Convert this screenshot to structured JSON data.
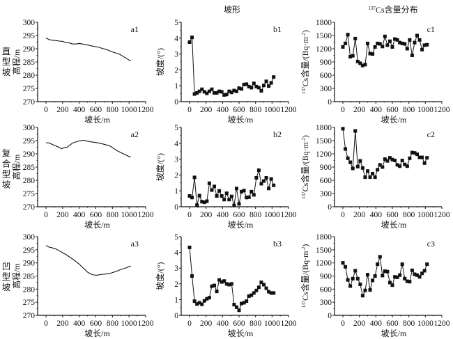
{
  "figure": {
    "column_titles": [
      "",
      "坡形",
      "137Cs含量分布"
    ],
    "row_labels": [
      [
        "直",
        "型",
        "坡"
      ],
      [
        "复",
        "合",
        "型",
        "坡"
      ],
      [
        "凹",
        "型",
        "坡"
      ]
    ]
  },
  "chart_data": [
    {
      "id": "a1",
      "type": "line",
      "row": 0,
      "col": 0,
      "markers": false,
      "title": "",
      "xlabel": "坡长/m",
      "ylabel": "高程/m",
      "xlim": [
        0,
        1200
      ],
      "ylim": [
        270,
        300
      ],
      "xticks": [
        0,
        200,
        400,
        600,
        800,
        1000,
        1200
      ],
      "yticks": [
        270,
        275,
        280,
        285,
        290,
        295,
        300
      ],
      "x": [
        0,
        40,
        80,
        120,
        160,
        200,
        240,
        280,
        320,
        360,
        400,
        440,
        480,
        520,
        560,
        600,
        640,
        680,
        720,
        760,
        800,
        840,
        880,
        920,
        960,
        1000,
        1020
      ],
      "y": [
        294.1,
        293.4,
        293.2,
        293.1,
        292.9,
        292.8,
        292.3,
        292.2,
        291.8,
        291.8,
        292.0,
        291.8,
        291.5,
        291.3,
        291.0,
        290.8,
        290.5,
        290.1,
        289.8,
        289.3,
        288.8,
        288.4,
        288.0,
        287.3,
        286.5,
        285.7,
        285.4
      ]
    },
    {
      "id": "b1",
      "type": "line",
      "row": 0,
      "col": 1,
      "markers": true,
      "title": "",
      "xlabel": "坡长/m",
      "ylabel": "坡度/(°)",
      "xlim": [
        0,
        1200
      ],
      "ylim": [
        0,
        5
      ],
      "xticks": [
        0,
        200,
        400,
        600,
        800,
        1000,
        1200
      ],
      "yticks": [
        0,
        1,
        2,
        3,
        4,
        5
      ],
      "x": [
        0,
        30,
        60,
        90,
        120,
        150,
        180,
        210,
        240,
        270,
        300,
        330,
        360,
        390,
        420,
        450,
        480,
        510,
        540,
        570,
        600,
        630,
        660,
        690,
        720,
        750,
        780,
        810,
        840,
        870,
        900,
        930,
        960,
        990,
        1020
      ],
      "y": [
        3.75,
        4.05,
        0.48,
        0.55,
        0.65,
        0.78,
        0.62,
        0.52,
        0.65,
        0.78,
        0.55,
        0.55,
        0.65,
        0.62,
        0.42,
        0.45,
        0.65,
        0.58,
        0.7,
        0.65,
        0.85,
        0.8,
        1.08,
        1.1,
        0.95,
        0.88,
        1.15,
        0.95,
        0.88,
        0.68,
        1.02,
        1.28,
        0.98,
        1.18,
        1.55
      ]
    },
    {
      "id": "c1",
      "type": "line",
      "row": 0,
      "col": 2,
      "markers": true,
      "title": "",
      "xlabel": "坡长/m",
      "ylabel": "137Cs含量/(Bq·m-2)",
      "xlim": [
        0,
        1200
      ],
      "ylim": [
        0,
        1800
      ],
      "xticks": [
        0,
        200,
        400,
        600,
        800,
        1000,
        1200
      ],
      "yticks": [
        0,
        300,
        600,
        900,
        1200,
        1500,
        1800
      ],
      "x": [
        0,
        30,
        60,
        90,
        120,
        150,
        180,
        210,
        240,
        270,
        300,
        330,
        360,
        390,
        420,
        450,
        480,
        510,
        540,
        570,
        600,
        630,
        660,
        690,
        720,
        750,
        780,
        810,
        840,
        870,
        900,
        930,
        960,
        990,
        1020
      ],
      "y": [
        1240,
        1320,
        1520,
        1020,
        1040,
        1430,
        910,
        870,
        820,
        840,
        1320,
        1090,
        1080,
        1240,
        1320,
        1310,
        1250,
        1480,
        1280,
        1370,
        1240,
        1420,
        1400,
        1340,
        1320,
        1310,
        1200,
        1400,
        1050,
        1340,
        1500,
        1400,
        1180,
        1280,
        1290
      ]
    },
    {
      "id": "a2",
      "type": "line",
      "row": 1,
      "col": 0,
      "markers": false,
      "title": "",
      "xlabel": "坡长/m",
      "ylabel": "高程/m",
      "xlim": [
        0,
        1200
      ],
      "ylim": [
        270,
        300
      ],
      "xticks": [
        0,
        200,
        400,
        600,
        800,
        1000,
        1200
      ],
      "yticks": [
        270,
        275,
        280,
        285,
        290,
        295,
        300
      ],
      "x": [
        0,
        40,
        80,
        120,
        160,
        190,
        220,
        250,
        280,
        320,
        360,
        400,
        450,
        500,
        550,
        600,
        650,
        700,
        760,
        800,
        850,
        900,
        950,
        1000,
        1020
      ],
      "y": [
        294.2,
        294.1,
        293.5,
        293.0,
        292.4,
        291.9,
        292.4,
        292.4,
        293.1,
        294.1,
        294.5,
        294.9,
        295.1,
        294.8,
        294.5,
        294.3,
        294.0,
        293.6,
        293.1,
        292.4,
        291.3,
        290.5,
        289.7,
        289.0,
        288.8
      ]
    },
    {
      "id": "b2",
      "type": "line",
      "row": 1,
      "col": 1,
      "markers": true,
      "title": "",
      "xlabel": "坡长/m",
      "ylabel": "坡度/(°)",
      "xlim": [
        0,
        1200
      ],
      "ylim": [
        0,
        5
      ],
      "xticks": [
        0,
        200,
        400,
        600,
        800,
        1000,
        1200
      ],
      "yticks": [
        0,
        1,
        2,
        3,
        4,
        5
      ],
      "x": [
        0,
        30,
        60,
        90,
        120,
        150,
        180,
        210,
        240,
        270,
        300,
        330,
        360,
        390,
        420,
        450,
        480,
        510,
        540,
        570,
        600,
        630,
        660,
        690,
        720,
        750,
        780,
        810,
        840,
        870,
        900,
        930,
        960,
        990,
        1020
      ],
      "y": [
        0.68,
        0.58,
        1.85,
        0.1,
        0.7,
        0.32,
        0.28,
        0.35,
        1.48,
        1.05,
        1.28,
        0.68,
        1.0,
        0.68,
        0.45,
        0.85,
        0.45,
        0.65,
        0.08,
        1.15,
        0.18,
        0.95,
        1.02,
        0.58,
        0.6,
        0.95,
        0.75,
        1.82,
        2.3,
        1.45,
        1.62,
        1.82,
        1.15,
        1.75,
        1.35
      ]
    },
    {
      "id": "c2",
      "type": "line",
      "row": 1,
      "col": 2,
      "markers": true,
      "title": "",
      "xlabel": "坡长/m",
      "ylabel": "137Cs含量/(Bq·m-2)",
      "xlim": [
        0,
        1200
      ],
      "ylim": [
        0,
        1800
      ],
      "xticks": [
        0,
        200,
        400,
        600,
        800,
        1000,
        1200
      ],
      "yticks": [
        0,
        300,
        600,
        900,
        1200,
        1500,
        1800
      ],
      "x": [
        0,
        30,
        60,
        90,
        120,
        150,
        180,
        210,
        240,
        270,
        300,
        330,
        360,
        390,
        420,
        450,
        480,
        510,
        540,
        570,
        600,
        630,
        660,
        690,
        720,
        750,
        780,
        810,
        840,
        870,
        900,
        930,
        960,
        990,
        1020
      ],
      "y": [
        1770,
        1310,
        1100,
        1010,
        870,
        1720,
        910,
        1040,
        880,
        670,
        810,
        670,
        750,
        670,
        840,
        950,
        900,
        1080,
        1040,
        1110,
        1070,
        1050,
        950,
        920,
        1050,
        960,
        920,
        1100,
        1230,
        1220,
        1190,
        1120,
        1120,
        990,
        1110
      ]
    },
    {
      "id": "a3",
      "type": "line",
      "row": 2,
      "col": 0,
      "markers": false,
      "title": "",
      "xlabel": "坡长/m",
      "ylabel": "高程/m",
      "xlim": [
        0,
        1200
      ],
      "ylim": [
        270,
        300
      ],
      "xticks": [
        0,
        200,
        400,
        600,
        800,
        1000,
        1200
      ],
      "yticks": [
        270,
        275,
        280,
        285,
        290,
        295,
        300
      ],
      "x": [
        0,
        40,
        80,
        120,
        160,
        200,
        250,
        300,
        350,
        400,
        450,
        500,
        540,
        580,
        620,
        660,
        700,
        760,
        800,
        850,
        900,
        950,
        1000,
        1020
      ],
      "y": [
        296.6,
        296.0,
        295.7,
        295.3,
        294.6,
        293.9,
        293.0,
        291.9,
        290.8,
        289.5,
        288.0,
        286.5,
        285.7,
        285.4,
        285.3,
        285.6,
        285.7,
        285.9,
        286.3,
        286.8,
        287.5,
        287.9,
        288.6,
        288.8
      ]
    },
    {
      "id": "b3",
      "type": "line",
      "row": 2,
      "col": 1,
      "markers": true,
      "title": "",
      "xlabel": "坡长/m",
      "ylabel": "坡度/(°)",
      "xlim": [
        0,
        1200
      ],
      "ylim": [
        0,
        5
      ],
      "xticks": [
        0,
        200,
        400,
        600,
        800,
        1000,
        1200
      ],
      "yticks": [
        0,
        1,
        2,
        3,
        4,
        5
      ],
      "x": [
        0,
        30,
        60,
        90,
        120,
        150,
        180,
        210,
        240,
        270,
        300,
        330,
        360,
        390,
        420,
        450,
        480,
        510,
        540,
        570,
        600,
        630,
        660,
        690,
        720,
        750,
        780,
        810,
        840,
        870,
        900,
        930,
        960,
        990,
        1020
      ],
      "y": [
        4.32,
        2.5,
        0.9,
        0.72,
        0.8,
        0.7,
        0.92,
        1.05,
        1.12,
        1.85,
        1.9,
        1.52,
        2.25,
        2.12,
        2.18,
        2.0,
        1.95,
        2.0,
        0.68,
        0.52,
        0.32,
        0.75,
        0.8,
        0.9,
        1.22,
        1.28,
        1.42,
        1.58,
        1.78,
        2.1,
        1.95,
        1.72,
        1.5,
        1.42,
        1.42
      ]
    },
    {
      "id": "c3",
      "type": "line",
      "row": 2,
      "col": 2,
      "markers": true,
      "title": "",
      "xlabel": "坡长/m",
      "ylabel": "137Cs含量/(Bq·m-2)",
      "xlim": [
        0,
        1200
      ],
      "ylim": [
        0,
        1800
      ],
      "xticks": [
        0,
        200,
        400,
        600,
        800,
        1000,
        1200
      ],
      "yticks": [
        0,
        300,
        600,
        900,
        1200,
        1500,
        1800
      ],
      "x": [
        0,
        30,
        60,
        90,
        120,
        150,
        180,
        210,
        240,
        270,
        300,
        330,
        360,
        390,
        420,
        450,
        480,
        510,
        540,
        570,
        600,
        630,
        660,
        690,
        720,
        750,
        780,
        810,
        840,
        870,
        900,
        930,
        960,
        990,
        1020
      ],
      "y": [
        1200,
        1110,
        810,
        670,
        840,
        1020,
        840,
        710,
        450,
        570,
        930,
        580,
        800,
        900,
        1170,
        1340,
        910,
        1010,
        1000,
        750,
        690,
        880,
        870,
        920,
        1170,
        840,
        780,
        770,
        1030,
        940,
        920,
        880,
        960,
        1020,
        1170
      ]
    }
  ]
}
